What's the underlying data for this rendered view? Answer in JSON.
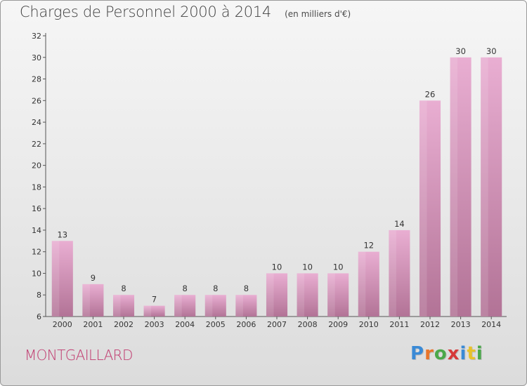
{
  "title": "Charges de Personnel 2000 à 2014",
  "subtitle": "(en milliers d'€)",
  "location": "MONTGAILLARD",
  "brand": {
    "letters": [
      "P",
      "r",
      "o",
      "x",
      "i",
      "t",
      "i"
    ],
    "colors": [
      "#3a8ad6",
      "#e8742a",
      "#4aa84a",
      "#d63a3a",
      "#3a8ad6",
      "#e8c22a",
      "#4aa84a"
    ]
  },
  "colors": {
    "bar_light": "#e9aed2",
    "bar_dark": "#b27396",
    "axis": "#555555",
    "grid": "#cfcfcf",
    "location_text": "#c0396e"
  },
  "chart_data": {
    "type": "bar",
    "title": "Charges de Personnel 2000 à 2014",
    "subtitle": "(en milliers d'€)",
    "xlabel": "",
    "ylabel": "",
    "categories": [
      "2000",
      "2001",
      "2002",
      "2003",
      "2004",
      "2005",
      "2006",
      "2007",
      "2008",
      "2009",
      "2010",
      "2011",
      "2012",
      "2013",
      "2014"
    ],
    "values": [
      13,
      9,
      8,
      7,
      8,
      8,
      8,
      10,
      10,
      10,
      12,
      14,
      26,
      30,
      30
    ],
    "ylim": [
      6,
      32
    ],
    "yticks": [
      6,
      8,
      10,
      12,
      14,
      16,
      18,
      20,
      22,
      24,
      26,
      28,
      30,
      32
    ],
    "data_labels": true,
    "grid": false,
    "legend": "none"
  }
}
